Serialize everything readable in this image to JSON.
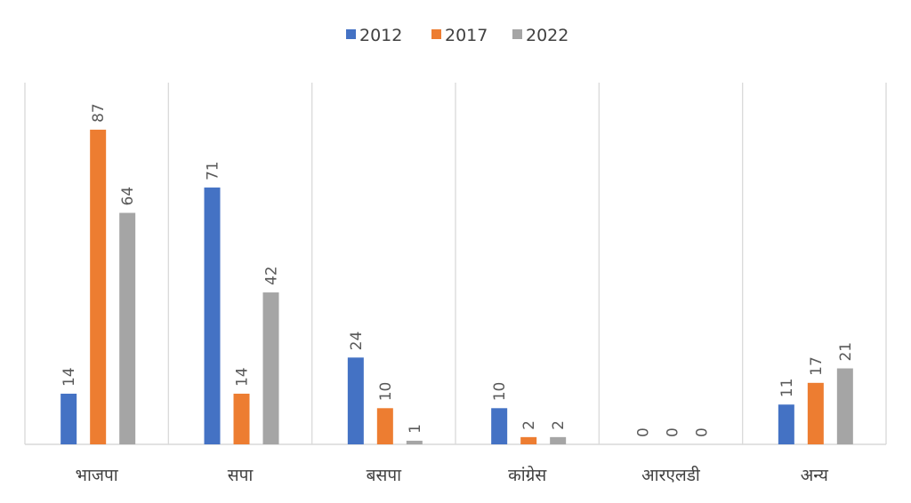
{
  "chart_data": {
    "type": "bar",
    "title": "",
    "xlabel": "",
    "ylabel": "",
    "ylim": [
      0,
      100
    ],
    "grid": "vertical category separators",
    "legend_position": "top",
    "categories": [
      "भाजपा",
      "सपा",
      "बसपा",
      "कांग्रेस",
      "आरएलडी",
      "अन्य"
    ],
    "series": [
      {
        "name": "2012",
        "color": "#4472C4",
        "values": [
          14,
          71,
          24,
          10,
          0,
          11
        ]
      },
      {
        "name": "2017",
        "color": "#ED7D31",
        "values": [
          87,
          14,
          10,
          2,
          0,
          17
        ]
      },
      {
        "name": "2022",
        "color": "#A5A5A5",
        "values": [
          64,
          42,
          1,
          2,
          0,
          21
        ]
      }
    ]
  }
}
